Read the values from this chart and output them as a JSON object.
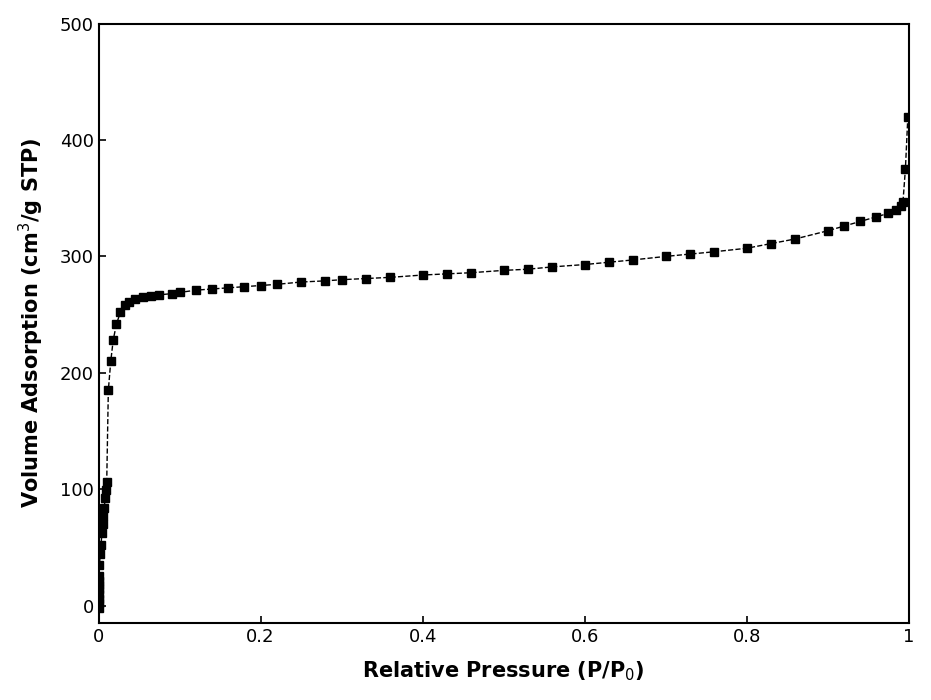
{
  "title": "",
  "xlabel": "Relative Pressure (P/P$_0$)",
  "ylabel": "Volume Adsorption (cm$^3$/g STP)",
  "xlim": [
    0.0,
    1.0
  ],
  "ylim": [
    -15,
    500
  ],
  "yticks": [
    0,
    100,
    200,
    300,
    400,
    500
  ],
  "xticks": [
    0.0,
    0.2,
    0.4,
    0.6,
    0.8,
    1.0
  ],
  "background_color": "#ffffff",
  "line_color": "#000000",
  "marker": "s",
  "markersize": 6,
  "linewidth": 1.0,
  "linestyle": "--",
  "data_x": [
    5e-06,
    1e-05,
    3e-05,
    6e-05,
    0.0001,
    0.0002,
    0.0003,
    0.0005,
    0.001,
    0.002,
    0.003,
    0.004,
    0.005,
    0.006,
    0.007,
    0.008,
    0.009,
    0.01,
    0.012,
    0.015,
    0.018,
    0.022,
    0.027,
    0.032,
    0.038,
    0.045,
    0.055,
    0.065,
    0.075,
    0.09,
    0.1,
    0.12,
    0.14,
    0.16,
    0.18,
    0.2,
    0.22,
    0.25,
    0.28,
    0.3,
    0.33,
    0.36,
    0.4,
    0.43,
    0.46,
    0.5,
    0.53,
    0.56,
    0.6,
    0.63,
    0.66,
    0.7,
    0.73,
    0.76,
    0.8,
    0.83,
    0.86,
    0.9,
    0.92,
    0.94,
    0.96,
    0.975,
    0.985,
    0.99,
    0.993,
    0.996,
    0.999
  ],
  "data_y": [
    -2,
    2,
    6,
    10,
    14,
    18,
    21,
    25,
    35,
    44,
    52,
    62,
    70,
    77,
    84,
    92,
    99,
    106,
    185,
    210,
    228,
    242,
    252,
    258,
    261,
    263,
    265,
    266,
    267,
    268,
    269,
    271,
    272,
    273,
    274,
    275,
    276,
    278,
    279,
    280,
    281,
    282,
    284,
    285,
    286,
    288,
    289,
    291,
    293,
    295,
    297,
    300,
    302,
    304,
    307,
    311,
    315,
    322,
    326,
    330,
    334,
    337,
    340,
    343,
    347,
    375,
    420
  ]
}
